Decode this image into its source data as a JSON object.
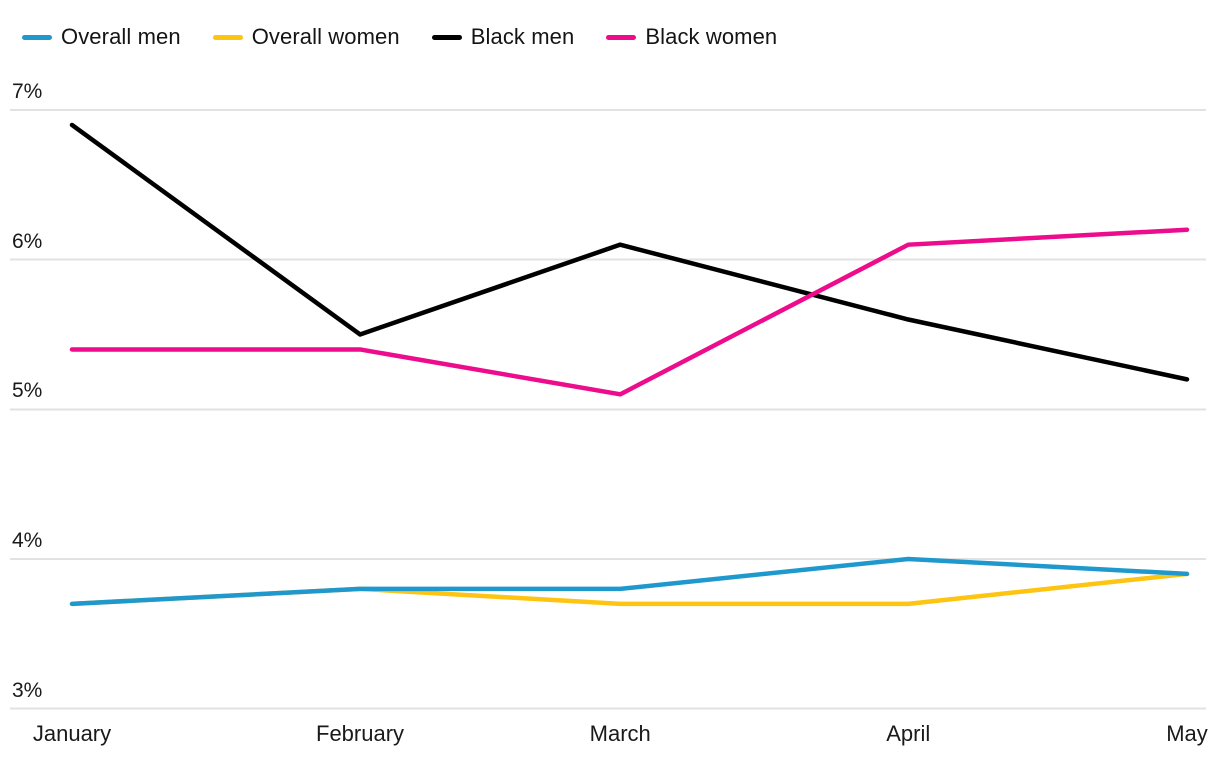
{
  "chart_data": {
    "type": "line",
    "title": "",
    "x": [
      "January",
      "February",
      "March",
      "April",
      "May"
    ],
    "x_day_offsets": [
      0,
      31,
      59,
      90,
      120
    ],
    "y_ticks": [
      "7%",
      "6%",
      "5%",
      "4%",
      "3%"
    ],
    "y_tick_values": [
      7,
      6,
      5,
      4,
      3
    ],
    "ylim": [
      3,
      7
    ],
    "grid": "horizontal",
    "legend_position": "top-left",
    "series": [
      {
        "name": "Overall men",
        "color": "#1f99cd",
        "values": [
          3.7,
          3.8,
          3.8,
          4.0,
          3.9
        ]
      },
      {
        "name": "Overall women",
        "color": "#fdc411",
        "values": [
          3.7,
          3.8,
          3.7,
          3.7,
          3.9
        ]
      },
      {
        "name": "Black men",
        "color": "#000000",
        "values": [
          6.9,
          5.5,
          6.1,
          5.6,
          5.2
        ]
      },
      {
        "name": "Black women",
        "color": "#ec0c8c",
        "values": [
          5.4,
          5.4,
          5.1,
          6.1,
          6.2
        ]
      }
    ]
  },
  "colors": {
    "gridline": "#e2e2e2",
    "axis_text": "#1a1a1a"
  }
}
